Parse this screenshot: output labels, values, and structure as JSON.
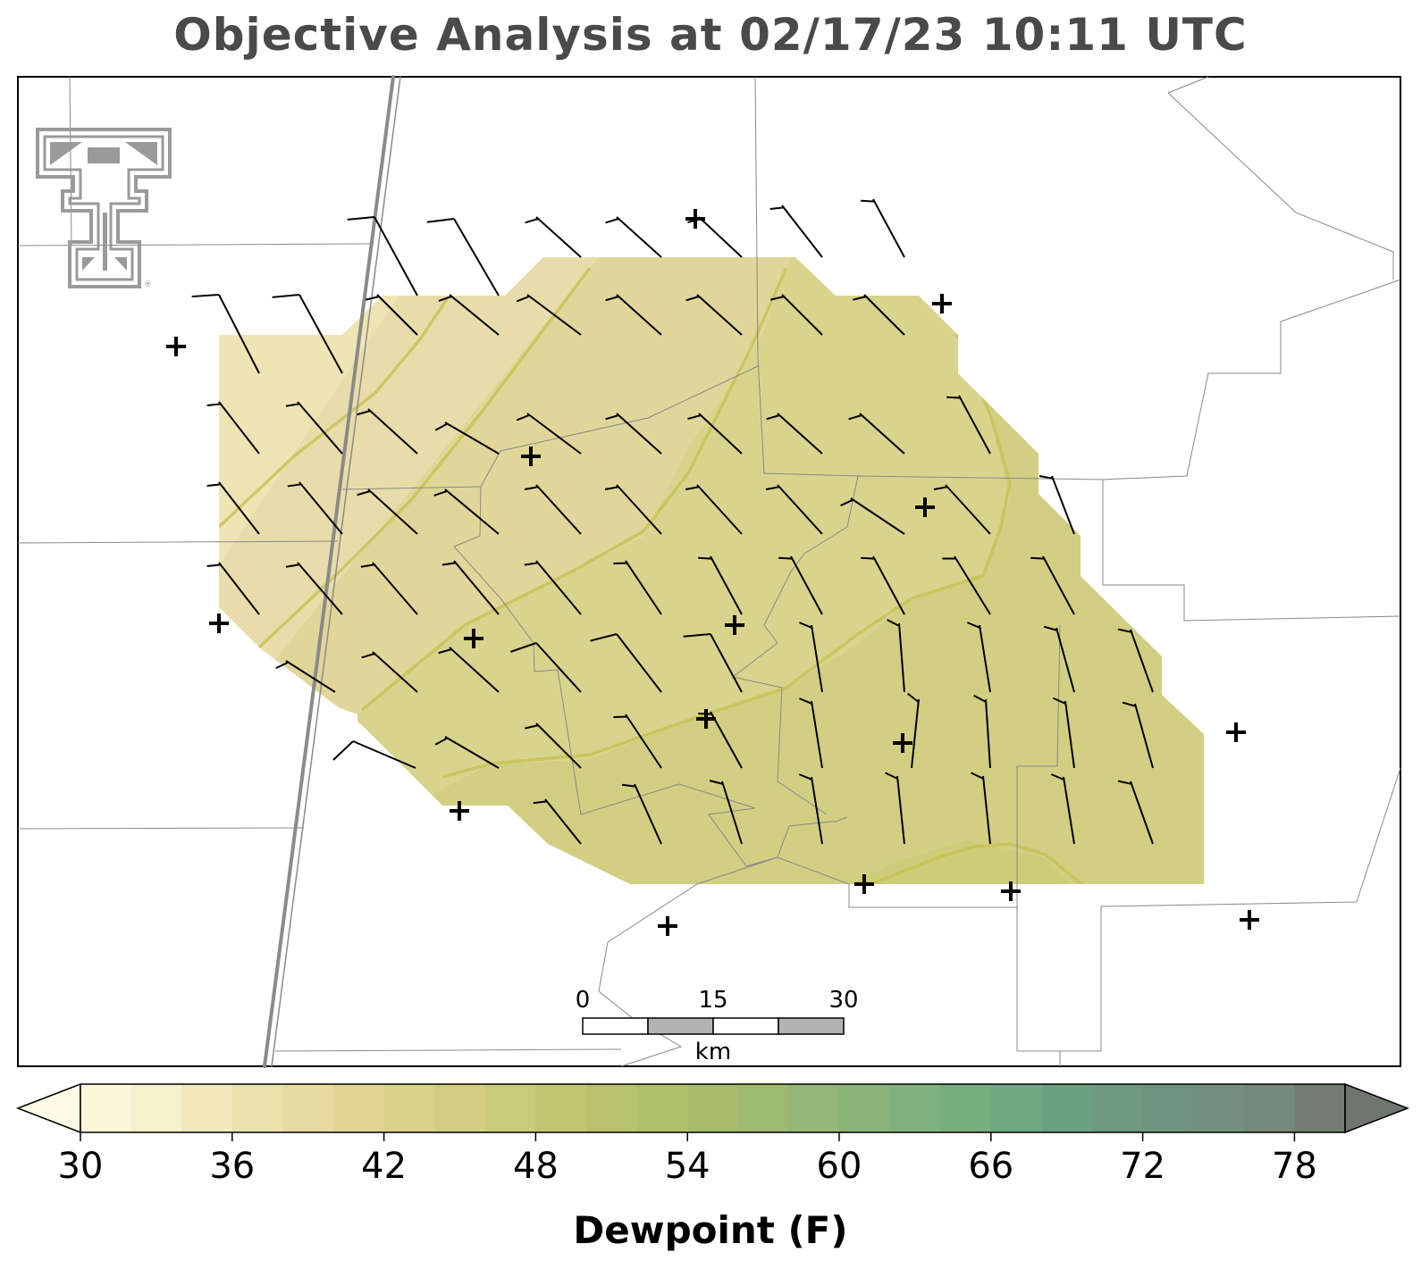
{
  "title": "Objective Analysis at 02/17/23 10:11 UTC",
  "colorbar": {
    "label": "Dewpoint (F)",
    "ticks": [
      "30",
      "36",
      "42",
      "48",
      "54",
      "60",
      "66",
      "72",
      "78"
    ],
    "min": 30,
    "max": 80,
    "step": 2.5,
    "colors": [
      "#fbf8da",
      "#f6f1cd",
      "#f1e8bc",
      "#ebe1ad",
      "#e6da9f",
      "#e1d492",
      "#d9d189",
      "#d2cd80",
      "#cbcc79",
      "#c3c671",
      "#b8c26c",
      "#afbf6a",
      "#a7bd6c",
      "#9ebb70",
      "#94b775",
      "#8ab47a",
      "#80b27e",
      "#77ae80",
      "#6fa982",
      "#6aa181",
      "#6d9a80",
      "#6f947f",
      "#72907d",
      "#74897b",
      "#737c73"
    ],
    "under_color": "#fdfbe6",
    "over_color": "#6e776e"
  },
  "scalebar": {
    "labels": [
      "0",
      "15",
      "30"
    ],
    "unit": "km"
  },
  "logo": {
    "name": "texas-tech-double-t-logo",
    "color": "#9a9a9a",
    "mark": "®"
  },
  "map_colors": {
    "fill_colors": [
      "#efe4b3",
      "#e8ddaa",
      "#e1d699",
      "#d9d48d",
      "#d2cf83",
      "#cdcd79"
    ],
    "contour": "#c7c052",
    "county_line": "#888888",
    "highway": "#888888",
    "barb": "#000000"
  }
}
